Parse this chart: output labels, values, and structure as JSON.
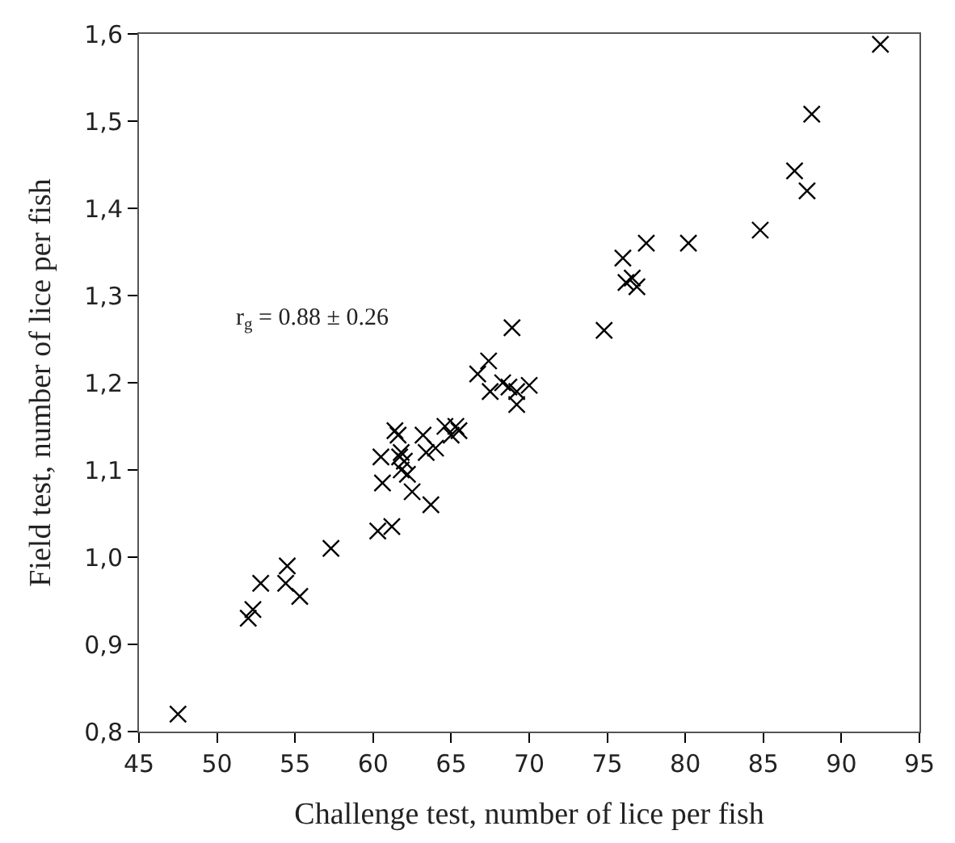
{
  "chart_data": {
    "type": "scatter",
    "xlabel": "Challenge test, number of lice per fish",
    "ylabel": "Field test, number of lice per fish",
    "annotations": [
      "r$_{g}$ = 0.88 ± 0.26"
    ],
    "marker": "cross",
    "xlim": [
      45,
      95
    ],
    "xticks": [
      45,
      50,
      55,
      60,
      65,
      70,
      75,
      80,
      85,
      90,
      95
    ],
    "ylim": [
      0.8,
      1.6
    ],
    "yticks": [
      {
        "value": 0.8,
        "label": "0,8"
      },
      {
        "value": 0.9,
        "label": "0,9"
      },
      {
        "value": 1.0,
        "label": "1,0"
      },
      {
        "value": 1.1,
        "label": "1,1"
      },
      {
        "value": 1.2,
        "label": "1,2"
      },
      {
        "value": 1.3,
        "label": "1,3"
      },
      {
        "value": 1.4,
        "label": "1,4"
      },
      {
        "value": 1.5,
        "label": "1,5"
      },
      {
        "value": 1.6,
        "label": "1,6"
      }
    ],
    "series": [
      {
        "color": "#000000",
        "x": [
          47.5,
          52,
          52.3,
          52.8,
          54.5,
          54.4,
          55.3,
          57.3,
          60.3,
          61.2,
          60.5,
          60.6,
          61.4,
          61.6,
          61.8,
          61.8,
          62,
          62.2,
          62.5,
          61.7,
          63.2,
          63.7,
          63.4,
          64,
          64.6,
          65,
          65.3,
          65.5,
          66.7,
          67.4,
          67.5,
          68.3,
          68.7,
          68.9,
          69.2,
          69.2,
          70,
          74.8,
          76,
          76.2,
          76.6,
          76.9,
          77.5,
          80.2,
          84.8,
          87,
          87.8,
          88.1,
          92.5
        ],
        "values": [
          0.82,
          0.93,
          0.94,
          0.97,
          0.99,
          0.97,
          0.955,
          1.01,
          1.03,
          1.035,
          1.115,
          1.085,
          1.145,
          1.14,
          1.12,
          1.1,
          1.11,
          1.095,
          1.075,
          1.115,
          1.14,
          1.06,
          1.12,
          1.125,
          1.15,
          1.14,
          1.15,
          1.145,
          1.21,
          1.225,
          1.19,
          1.2,
          1.195,
          1.263,
          1.175,
          1.19,
          1.197,
          1.26,
          1.343,
          1.315,
          1.32,
          1.31,
          1.36,
          1.36,
          1.375,
          1.443,
          1.42,
          1.508,
          1.588
        ]
      }
    ]
  }
}
